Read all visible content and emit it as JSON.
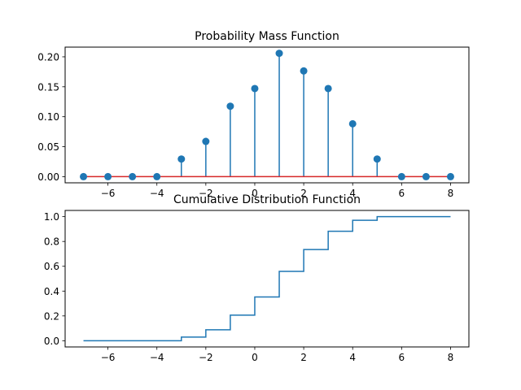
{
  "chart_data": [
    {
      "type": "stem",
      "title": "Probability Mass Function",
      "x": [
        -7,
        -6,
        -5,
        -4,
        -3,
        -2,
        -1,
        0,
        1,
        2,
        3,
        4,
        5,
        6,
        7,
        8
      ],
      "y": [
        0.0,
        0.0,
        0.0,
        0.0,
        0.0294,
        0.0588,
        0.1176,
        0.1471,
        0.2059,
        0.1765,
        0.1471,
        0.0882,
        0.0294,
        0.0,
        0.0,
        0.0
      ],
      "xlim": [
        -7.75,
        8.75
      ],
      "ylim": [
        -0.0103,
        0.2162
      ],
      "xticks": [
        -6,
        -4,
        -2,
        0,
        2,
        4,
        6,
        8
      ],
      "xtick_labels": [
        "−6",
        "−4",
        "−2",
        "0",
        "2",
        "4",
        "6",
        "8"
      ],
      "yticks": [
        0.0,
        0.05,
        0.1,
        0.15,
        0.2
      ],
      "ytick_labels": [
        "0.00",
        "0.05",
        "0.10",
        "0.15",
        "0.20"
      ],
      "stem_color": "#1f77b4",
      "baseline_color": "#d62728"
    },
    {
      "type": "step",
      "title": "Cumulative Distribution Function",
      "x": [
        -7,
        -6,
        -5,
        -4,
        -3,
        -2,
        -1,
        0,
        1,
        2,
        3,
        4,
        5,
        6,
        7,
        8
      ],
      "y": [
        0.0,
        0.0,
        0.0,
        0.0,
        0.0294,
        0.0882,
        0.2059,
        0.3529,
        0.5588,
        0.7353,
        0.8824,
        0.9706,
        1.0,
        1.0,
        1.0,
        1.0
      ],
      "xlim": [
        -7.75,
        8.75
      ],
      "ylim": [
        -0.05,
        1.05
      ],
      "xticks": [
        -6,
        -4,
        -2,
        0,
        2,
        4,
        6,
        8
      ],
      "xtick_labels": [
        "−6",
        "−4",
        "−2",
        "0",
        "2",
        "4",
        "6",
        "8"
      ],
      "yticks": [
        0.0,
        0.2,
        0.4,
        0.6,
        0.8,
        1.0
      ],
      "ytick_labels": [
        "0.0",
        "0.2",
        "0.4",
        "0.6",
        "0.8",
        "1.0"
      ],
      "line_color": "#1f77b4"
    }
  ]
}
